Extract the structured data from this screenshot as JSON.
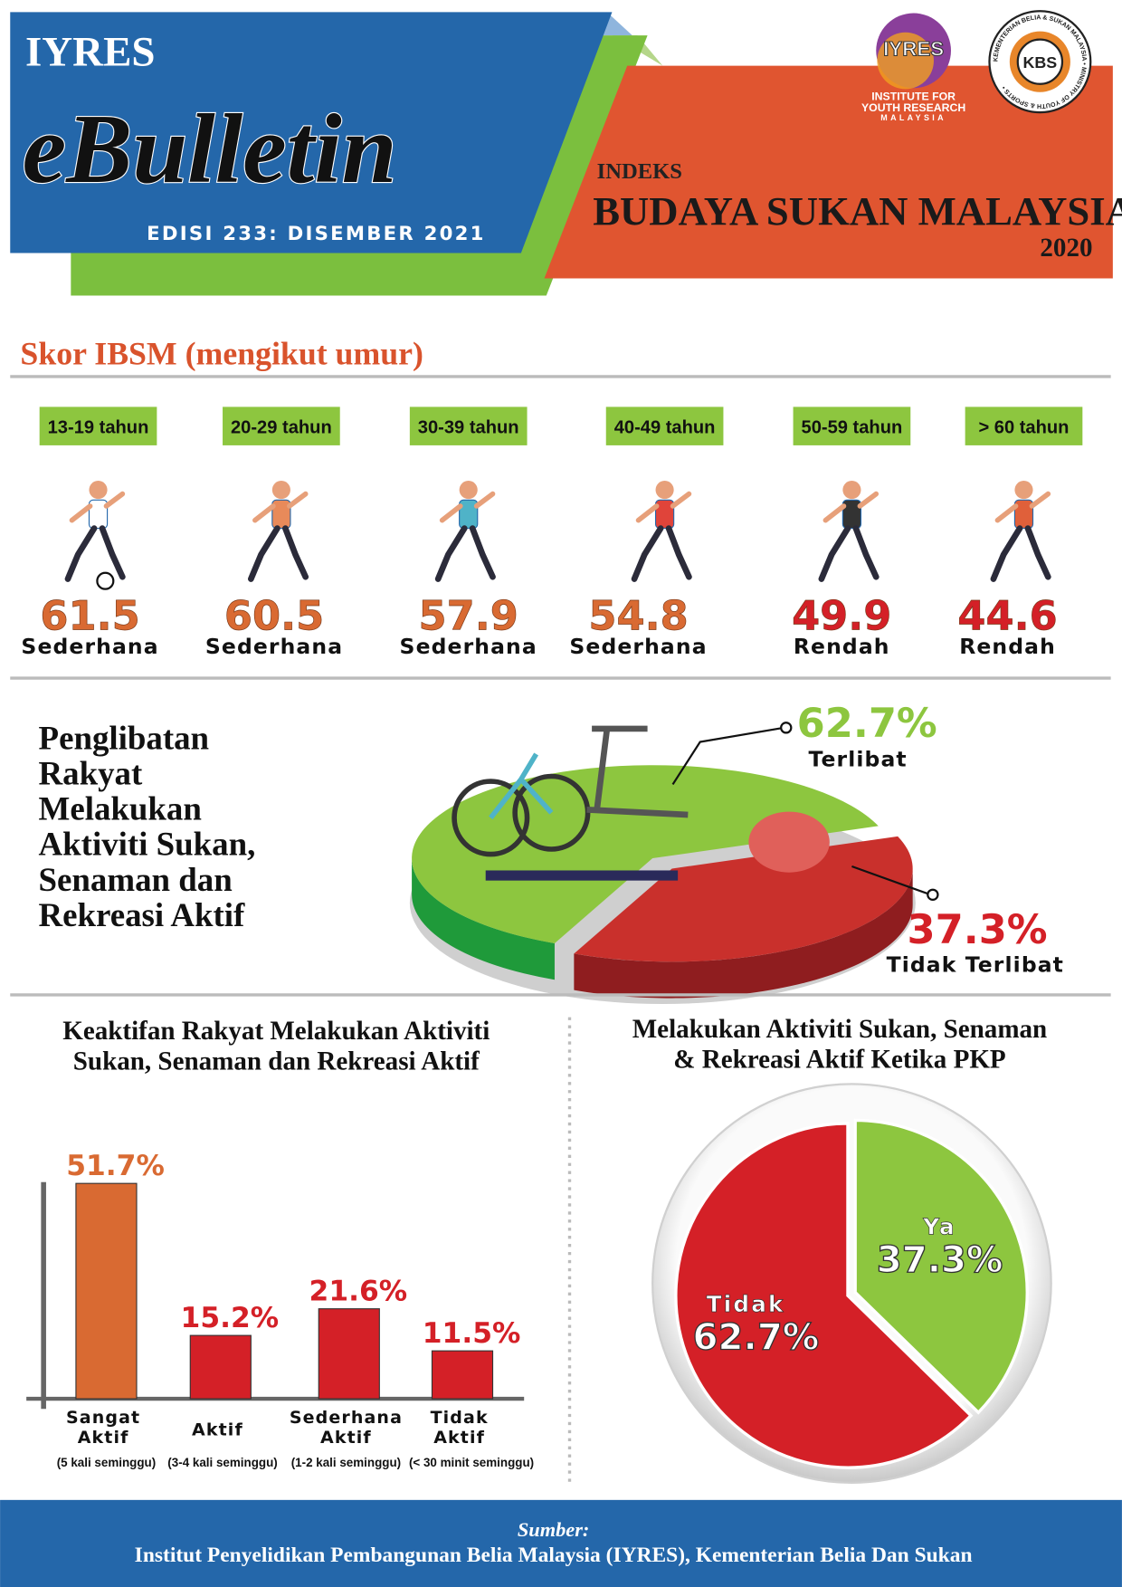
{
  "header": {
    "brand": "IYRES",
    "title": "eBulletin",
    "edition": "EDISI 233: DISEMBER 2021",
    "index_label": "INDEKS",
    "index_title": "BUDAYA SUKAN MALAYSIA",
    "year": "2020",
    "logos": {
      "iyres": "IYRES",
      "iyres_caption": [
        "INSTITUTE FOR",
        "YOUTH RESEARCH",
        "MALAYSIA"
      ],
      "kbs": "KBS",
      "kbs_ring": "KEMENTERIAN BELIA & SUKAN MALAYSIA • MINISTRY OF YOUTH & SPORTS •"
    }
  },
  "age_scores": {
    "title": "Skor IBSM (mengikut umur)",
    "groups": [
      {
        "age": "13-19 tahun",
        "score": 61.5,
        "level": "Sederhana",
        "color": "#d96a32"
      },
      {
        "age": "20-29 tahun",
        "score": 60.5,
        "level": "Sederhana",
        "color": "#d96a32"
      },
      {
        "age": "30-39 tahun",
        "score": 57.9,
        "level": "Sederhana",
        "color": "#d96a32"
      },
      {
        "age": "40-49 tahun",
        "score": 54.8,
        "level": "Sederhana",
        "color": "#d96a32"
      },
      {
        "age": "50-59 tahun",
        "score": 49.9,
        "level": "Rendah",
        "color": "#d42027"
      },
      {
        "age": "> 60 tahun",
        "score": 44.6,
        "level": "Rendah",
        "color": "#d42027"
      }
    ]
  },
  "chart_data": [
    {
      "type": "pie3d",
      "title_lines": [
        "Penglibatan",
        "Rakyat",
        "Melakukan",
        "Aktiviti Sukan,",
        "Senaman dan",
        "Rekreasi Aktif"
      ],
      "categories": [
        "Terlibat",
        "Tidak Terlibat"
      ],
      "values": [
        62.7,
        37.3
      ],
      "value_labels": [
        "62.7%",
        "37.3%"
      ],
      "colors": [
        "#8dc63f",
        "#c9302c"
      ]
    },
    {
      "type": "bar",
      "title_lines": [
        "Keaktifan Rakyat Melakukan Aktiviti",
        "Sukan, Senaman dan Rekreasi Aktif"
      ],
      "categories": [
        "Sangat Aktif",
        "Aktif",
        "Sederhana Aktif",
        "Tidak Aktif"
      ],
      "category_notes": [
        "(5 kali seminggu)",
        "(3-4 kali seminggu)",
        "(1-2 kali seminggu)",
        "(< 30 minit seminggu)"
      ],
      "values": [
        51.7,
        15.2,
        21.6,
        11.5
      ],
      "value_labels": [
        "51.7%",
        "15.2%",
        "21.6%",
        "11.5%"
      ],
      "colors": [
        "#d96a32",
        "#d42027",
        "#d42027",
        "#d42027"
      ],
      "ylim": [
        0,
        52
      ]
    },
    {
      "type": "pie",
      "title_lines": [
        "Melakukan Aktiviti Sukan, Senaman",
        "& Rekreasi Aktif Ketika PKP"
      ],
      "categories": [
        "Ya",
        "Tidak"
      ],
      "values": [
        37.3,
        62.7
      ],
      "value_labels": [
        "37.3%",
        "62.7%"
      ],
      "colors": [
        "#8dc63f",
        "#d42027"
      ]
    }
  ],
  "footer": {
    "source_label": "Sumber:",
    "source": "Institut Penyelidikan Pembangunan Belia Malaysia (IYRES), Kementerian Belia Dan Sukan"
  }
}
